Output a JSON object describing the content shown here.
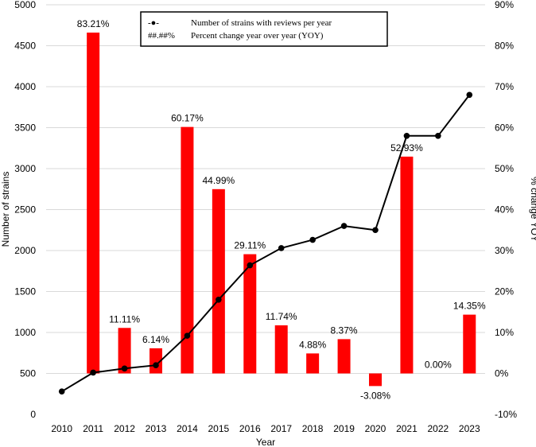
{
  "chart_data": {
    "type": "bar",
    "categories": [
      "2010",
      "2011",
      "2012",
      "2013",
      "2014",
      "2015",
      "2016",
      "2017",
      "2018",
      "2019",
      "2020",
      "2021",
      "2022",
      "2023"
    ],
    "series": [
      {
        "name": "Number of strains with reviews per year",
        "type": "line",
        "axis": "left",
        "color": "#000000",
        "values": [
          280,
          510,
          560,
          600,
          960,
          1400,
          1820,
          2030,
          2130,
          2300,
          2250,
          3400,
          3400,
          3900
        ]
      },
      {
        "name": "Percent change year over year (YOY)",
        "type": "bar",
        "axis": "right",
        "color": "#ff0000",
        "values": [
          null,
          83.21,
          11.11,
          6.14,
          60.17,
          44.99,
          29.11,
          11.74,
          4.88,
          8.37,
          -3.08,
          52.93,
          0.0,
          14.35
        ],
        "labels": [
          "",
          "83.21%",
          "11.11%",
          "6.14%",
          "60.17%",
          "44.99%",
          "29.11%",
          "11.74%",
          "4.88%",
          "8.37%",
          "-3.08%",
          "52.93%",
          "0.00%",
          "14.35%"
        ]
      }
    ],
    "xlabel": "Year",
    "ylabel": "Number of strains",
    "y2label": "% change YOY",
    "ylim": [
      0,
      5000
    ],
    "y2lim": [
      -10,
      90
    ],
    "yticks": [
      "0",
      "500",
      "1000",
      "1500",
      "2000",
      "2500",
      "3000",
      "3500",
      "4000",
      "4500",
      "5000"
    ],
    "y2ticks": [
      "-10%",
      "0%",
      "10%",
      "20%",
      "30%",
      "40%",
      "50%",
      "60%",
      "70%",
      "80%",
      "90%"
    ],
    "grid": true,
    "legend_position": "top",
    "legend": {
      "line_symbol": "-●-",
      "bar_symbol": "##.##%"
    }
  }
}
